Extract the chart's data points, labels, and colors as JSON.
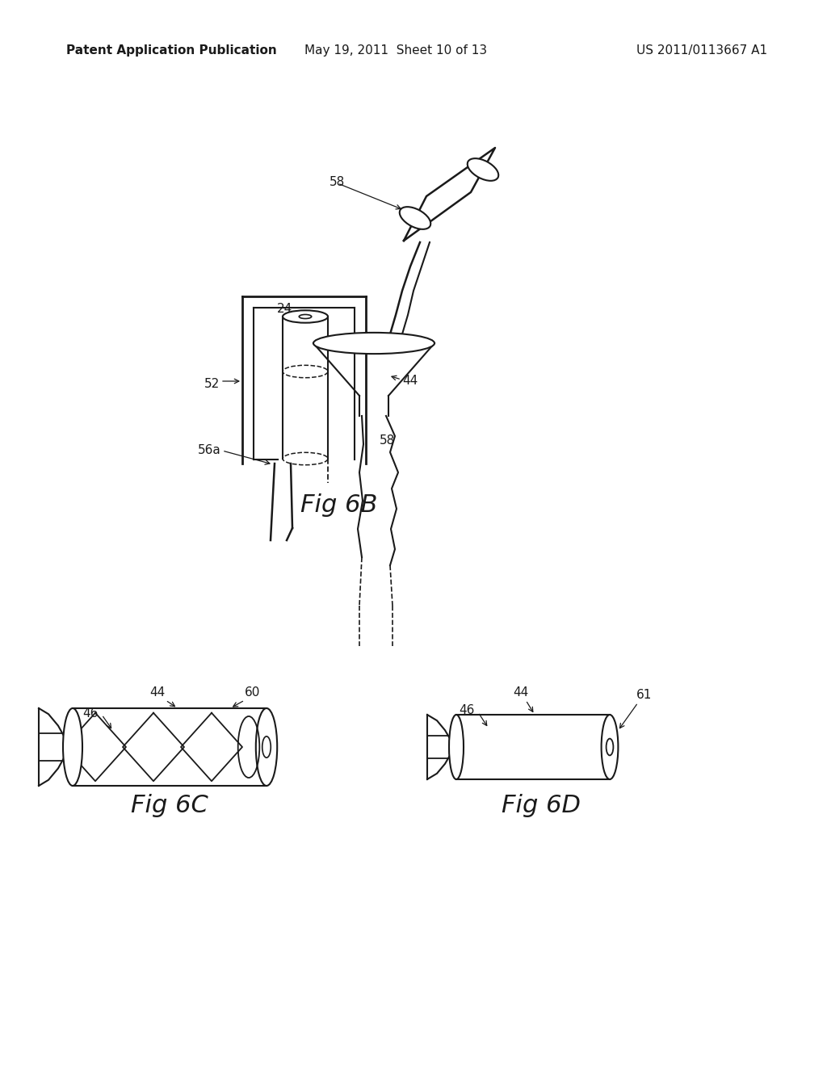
{
  "background_color": "#ffffff",
  "header_left": "Patent Application Publication",
  "header_mid": "May 19, 2011  Sheet 10 of 13",
  "header_right": "US 2011/0113667 A1",
  "header_fontsize": 11,
  "fig6b_label": "Fig 6B",
  "fig6c_label": "Fig 6C",
  "fig6d_label": "Fig 6D",
  "label_fontsize": 20,
  "annotation_fontsize": 11,
  "line_color": "#1a1a1a",
  "line_width": 1.5
}
